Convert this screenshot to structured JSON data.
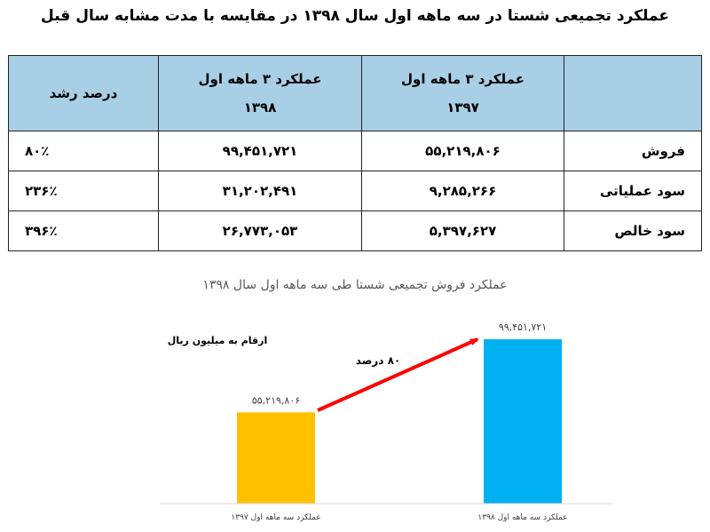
{
  "title": "عملکرد تجمیعی شستا در سه ماهه اول سال ۱۳۹۸ در مقایسه با مدت مشابه سال قبل",
  "table": {
    "headers": [
      "",
      "عملکرد ۳ ماهه اول ۱۳۹۷",
      "عملکرد ۳ ماهه اول ۱۳۹۸",
      "درصد رشد"
    ],
    "header_lines": [
      [
        ""
      ],
      [
        "عملکرد ۳ ماهه اول",
        "۱۳۹۷"
      ],
      [
        "عملکرد ۳ ماهه اول",
        "۱۳۹۸"
      ],
      [
        "درصد رشد"
      ]
    ],
    "rows": [
      {
        "label": "فروش",
        "v1397": "۵۵,۲۱۹,۸۰۶",
        "v1398": "۹۹,۴۵۱,۷۲۱",
        "growth": "۸۰٪"
      },
      {
        "label": "سود عملیاتی",
        "v1397": "۹,۲۸۵,۲۶۶",
        "v1398": "۳۱,۲۰۲,۴۹۱",
        "growth": "۲۳۶٪"
      },
      {
        "label": "سود خالص",
        "v1397": "۵,۳۹۷,۶۲۷",
        "v1398": "۲۶,۷۷۳,۰۵۳",
        "growth": "۳۹۶٪"
      }
    ]
  },
  "colors": {
    "header_bg": "#a9cfe6",
    "bar_1397": "#ffc000",
    "bar_1398": "#00b0f0",
    "arrow": "#ff0000"
  },
  "chart_data": {
    "type": "bar",
    "title": "عملکرد فروش تجمیعی شستا طی سه ماهه اول سال ۱۳۹۸",
    "unit_note": "ارقام به میلیون ریال",
    "categories": [
      "عملکرد سه ماهه اول ۱۳۹۷",
      "عملکرد سه ماهه اول ۱۳۹۸"
    ],
    "values": [
      55219806,
      99451721
    ],
    "value_labels": [
      "۵۵,۲۱۹,۸۰۶",
      "۹۹,۴۵۱,۷۲۱"
    ],
    "annotation": "۸۰ درصد",
    "ylim": [
      0,
      99451721
    ],
    "grid": false,
    "legend": "none"
  }
}
